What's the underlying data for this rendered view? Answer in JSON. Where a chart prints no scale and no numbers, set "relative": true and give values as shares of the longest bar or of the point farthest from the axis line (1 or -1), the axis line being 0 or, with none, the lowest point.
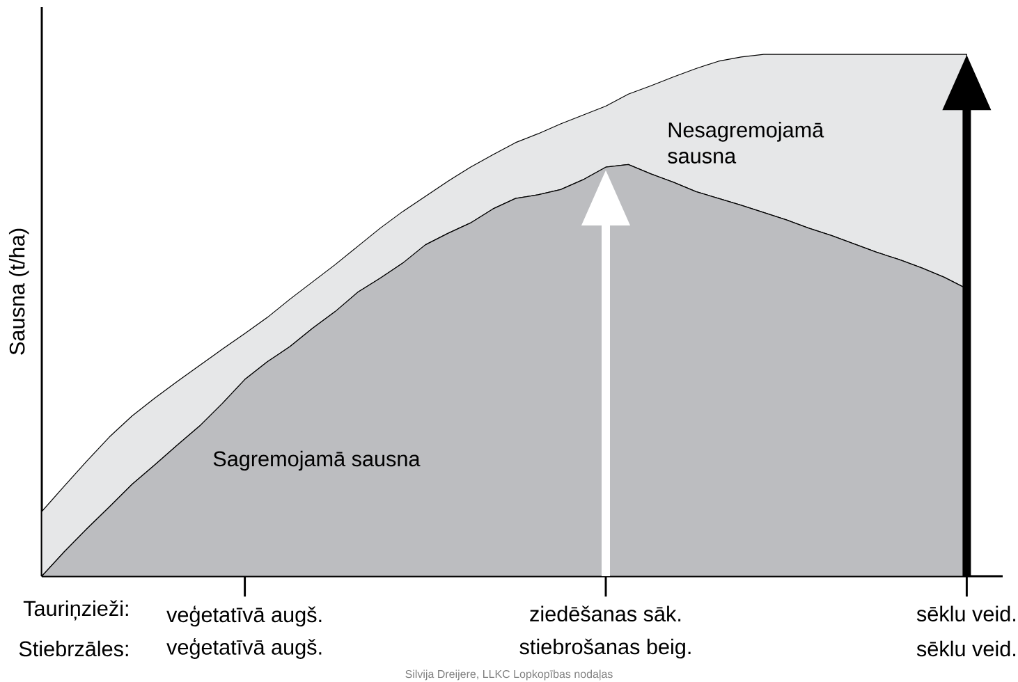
{
  "chart_data": {
    "type": "area",
    "relative": true,
    "stacked": true,
    "ylabel": "Sausna (t/ha)",
    "categories": [
      null,
      null,
      null,
      null,
      null,
      null,
      null,
      null,
      null,
      "veģetatīvā augš.",
      null,
      null,
      null,
      null,
      null,
      null,
      null,
      null,
      null,
      null,
      null,
      null,
      null,
      null,
      null,
      "ziedēšanas sāk.",
      null,
      null,
      null,
      null,
      null,
      null,
      null,
      null,
      null,
      null,
      null,
      null,
      null,
      null,
      null,
      "sēklu veid."
    ],
    "series": [
      {
        "name": "Sagremojamā sausna",
        "color": "#bcbdc0",
        "values": [
          0,
          0.047,
          0.091,
          0.133,
          0.176,
          0.213,
          0.251,
          0.288,
          0.331,
          0.377,
          0.411,
          0.44,
          0.475,
          0.507,
          0.544,
          0.571,
          0.6,
          0.635,
          0.657,
          0.677,
          0.704,
          0.724,
          0.731,
          0.741,
          0.76,
          0.784,
          0.789,
          0.771,
          0.755,
          0.737,
          0.724,
          0.711,
          0.697,
          0.683,
          0.667,
          0.653,
          0.637,
          0.621,
          0.607,
          0.591,
          0.573,
          0.551
        ]
      },
      {
        "name": "Nesagremojamā sausna",
        "color": "#e6e7e8",
        "values": [
          0.124,
          0.126,
          0.13,
          0.134,
          0.131,
          0.128,
          0.122,
          0.116,
          0.104,
          0.088,
          0.085,
          0.091,
          0.089,
          0.09,
          0.088,
          0.096,
          0.099,
          0.093,
          0.1,
          0.107,
          0.104,
          0.107,
          0.117,
          0.126,
          0.124,
          0.117,
          0.135,
          0.169,
          0.202,
          0.236,
          0.263,
          0.284,
          0.303,
          0.317,
          0.333,
          0.347,
          0.363,
          0.379,
          0.393,
          0.409,
          0.427,
          0.449
        ]
      }
    ],
    "annotations": [
      "Tauriņzieži:",
      "Stiebrzāles:",
      "veģetatīvā augš.",
      "stiebrošanas beig.",
      "sēklu veid.",
      "Silvija Dreijere, LLKC Lopkopības nodaļas"
    ]
  }
}
